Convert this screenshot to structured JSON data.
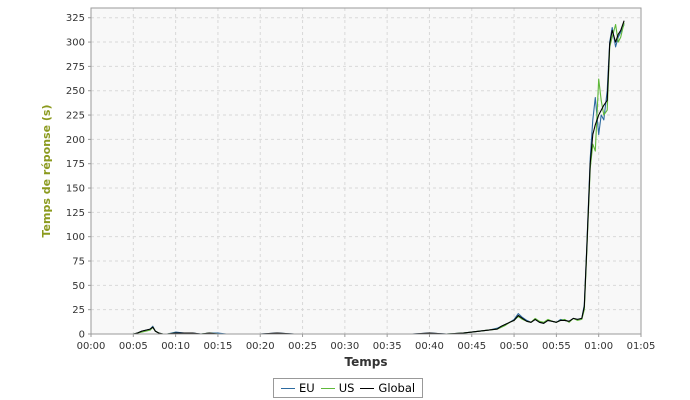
{
  "chart_data": {
    "type": "line",
    "title": "",
    "xlabel": "Temps",
    "ylabel": "Temps de réponse (s)",
    "xlim": [
      0,
      65
    ],
    "ylim": [
      0,
      335
    ],
    "x_ticks": [
      0,
      5,
      10,
      15,
      20,
      25,
      30,
      35,
      40,
      45,
      50,
      55,
      60,
      65
    ],
    "x_tick_labels": [
      "00:00",
      "00:05",
      "00:10",
      "00:15",
      "00:20",
      "00:25",
      "00:30",
      "00:35",
      "00:40",
      "00:45",
      "00:50",
      "00:55",
      "01:00",
      "01:05"
    ],
    "y_ticks": [
      0,
      25,
      50,
      75,
      100,
      125,
      150,
      175,
      200,
      225,
      250,
      275,
      300,
      325
    ],
    "grid": true,
    "legend": "bottom-center",
    "colors": {
      "ylabel": "#8b9a1e",
      "plot_bg": "#f8f8f8",
      "grid": "#d9d9d9"
    },
    "series": [
      {
        "name": "EU",
        "color": "#2c6aa0",
        "x": [
          3,
          4,
          5,
          5.5,
          6,
          6.5,
          7,
          7.3,
          7.6,
          8,
          8.5,
          9,
          10,
          11,
          12,
          13,
          14,
          15,
          16,
          18,
          20,
          22,
          24,
          26,
          28,
          30,
          32,
          34,
          36,
          38,
          40,
          42,
          44,
          45,
          46,
          47,
          48,
          48.5,
          49,
          49.5,
          50,
          50.5,
          51,
          51.5,
          52,
          52.5,
          53,
          53.5,
          54,
          54.5,
          55,
          55.5,
          56,
          56.5,
          57,
          57.5,
          58,
          58.3,
          58.6,
          59,
          59.3,
          59.6,
          60,
          60.3,
          60.6,
          61,
          61.3,
          61.6,
          62,
          62.3,
          62.6,
          63
        ],
        "y": [
          0,
          0,
          0,
          1,
          3,
          4,
          5,
          8,
          3,
          1,
          0,
          0,
          2,
          1,
          1,
          0,
          1,
          1,
          0,
          0,
          0,
          1,
          0,
          0,
          0,
          0,
          0,
          0,
          0,
          0,
          1,
          0,
          1,
          2,
          3,
          4,
          6,
          8,
          10,
          12,
          15,
          21,
          17,
          14,
          12,
          15,
          12,
          11,
          14,
          13,
          12,
          15,
          14,
          13,
          16,
          15,
          16,
          30,
          90,
          180,
          220,
          243,
          205,
          225,
          220,
          250,
          300,
          315,
          295,
          305,
          310,
          318
        ]
      },
      {
        "name": "US",
        "color": "#5fb83a",
        "x": [
          3,
          4,
          5,
          5.5,
          6,
          6.5,
          7,
          7.3,
          7.6,
          8,
          8.5,
          9,
          10,
          11,
          12,
          13,
          14,
          15,
          16,
          18,
          20,
          22,
          24,
          26,
          28,
          30,
          32,
          34,
          36,
          38,
          40,
          42,
          44,
          45,
          46,
          47,
          48,
          48.5,
          49,
          49.5,
          50,
          50.5,
          51,
          51.5,
          52,
          52.5,
          53,
          53.5,
          54,
          54.5,
          55,
          55.5,
          56,
          56.5,
          57,
          57.5,
          58,
          58.3,
          58.6,
          59,
          59.3,
          59.6,
          60,
          60.3,
          60.6,
          61,
          61.3,
          61.6,
          62,
          62.3,
          62.6,
          63
        ],
        "y": [
          0,
          0,
          0,
          1,
          2,
          3,
          4,
          7,
          3,
          1,
          0,
          0,
          1,
          1,
          0,
          0,
          1,
          0,
          0,
          0,
          0,
          0,
          0,
          0,
          0,
          0,
          0,
          0,
          0,
          0,
          0,
          0,
          1,
          2,
          3,
          4,
          5,
          7,
          9,
          12,
          14,
          18,
          15,
          13,
          12,
          16,
          13,
          12,
          15,
          13,
          12,
          14,
          15,
          12,
          16,
          14,
          15,
          25,
          85,
          170,
          195,
          188,
          262,
          240,
          225,
          230,
          295,
          305,
          318,
          300,
          305,
          320
        ]
      },
      {
        "name": "Global",
        "color": "#000000",
        "x": [
          3,
          4,
          5,
          5.5,
          6,
          6.5,
          7,
          7.3,
          7.6,
          8,
          8.5,
          9,
          10,
          11,
          12,
          13,
          14,
          15,
          16,
          18,
          20,
          22,
          24,
          26,
          28,
          30,
          32,
          34,
          36,
          38,
          40,
          42,
          44,
          45,
          46,
          47,
          48,
          48.5,
          49,
          49.5,
          50,
          50.5,
          51,
          51.5,
          52,
          52.5,
          53,
          53.5,
          54,
          54.5,
          55,
          55.5,
          56,
          56.5,
          57,
          57.5,
          58,
          58.3,
          58.6,
          59,
          59.3,
          59.6,
          60,
          60.3,
          60.6,
          61,
          61.3,
          61.6,
          62,
          62.3,
          62.6,
          63
        ],
        "y": [
          0,
          0,
          0,
          1,
          3,
          4,
          5,
          7,
          3,
          1,
          0,
          0,
          1,
          1,
          1,
          0,
          1,
          0,
          0,
          0,
          0,
          1,
          0,
          0,
          0,
          0,
          0,
          0,
          0,
          0,
          1,
          0,
          1,
          2,
          3,
          4,
          5,
          8,
          10,
          12,
          14,
          19,
          16,
          13,
          12,
          15,
          12,
          11,
          14,
          13,
          12,
          14,
          14,
          13,
          16,
          15,
          16,
          28,
          88,
          175,
          205,
          215,
          225,
          230,
          235,
          240,
          298,
          312,
          300,
          308,
          312,
          322
        ]
      }
    ]
  }
}
